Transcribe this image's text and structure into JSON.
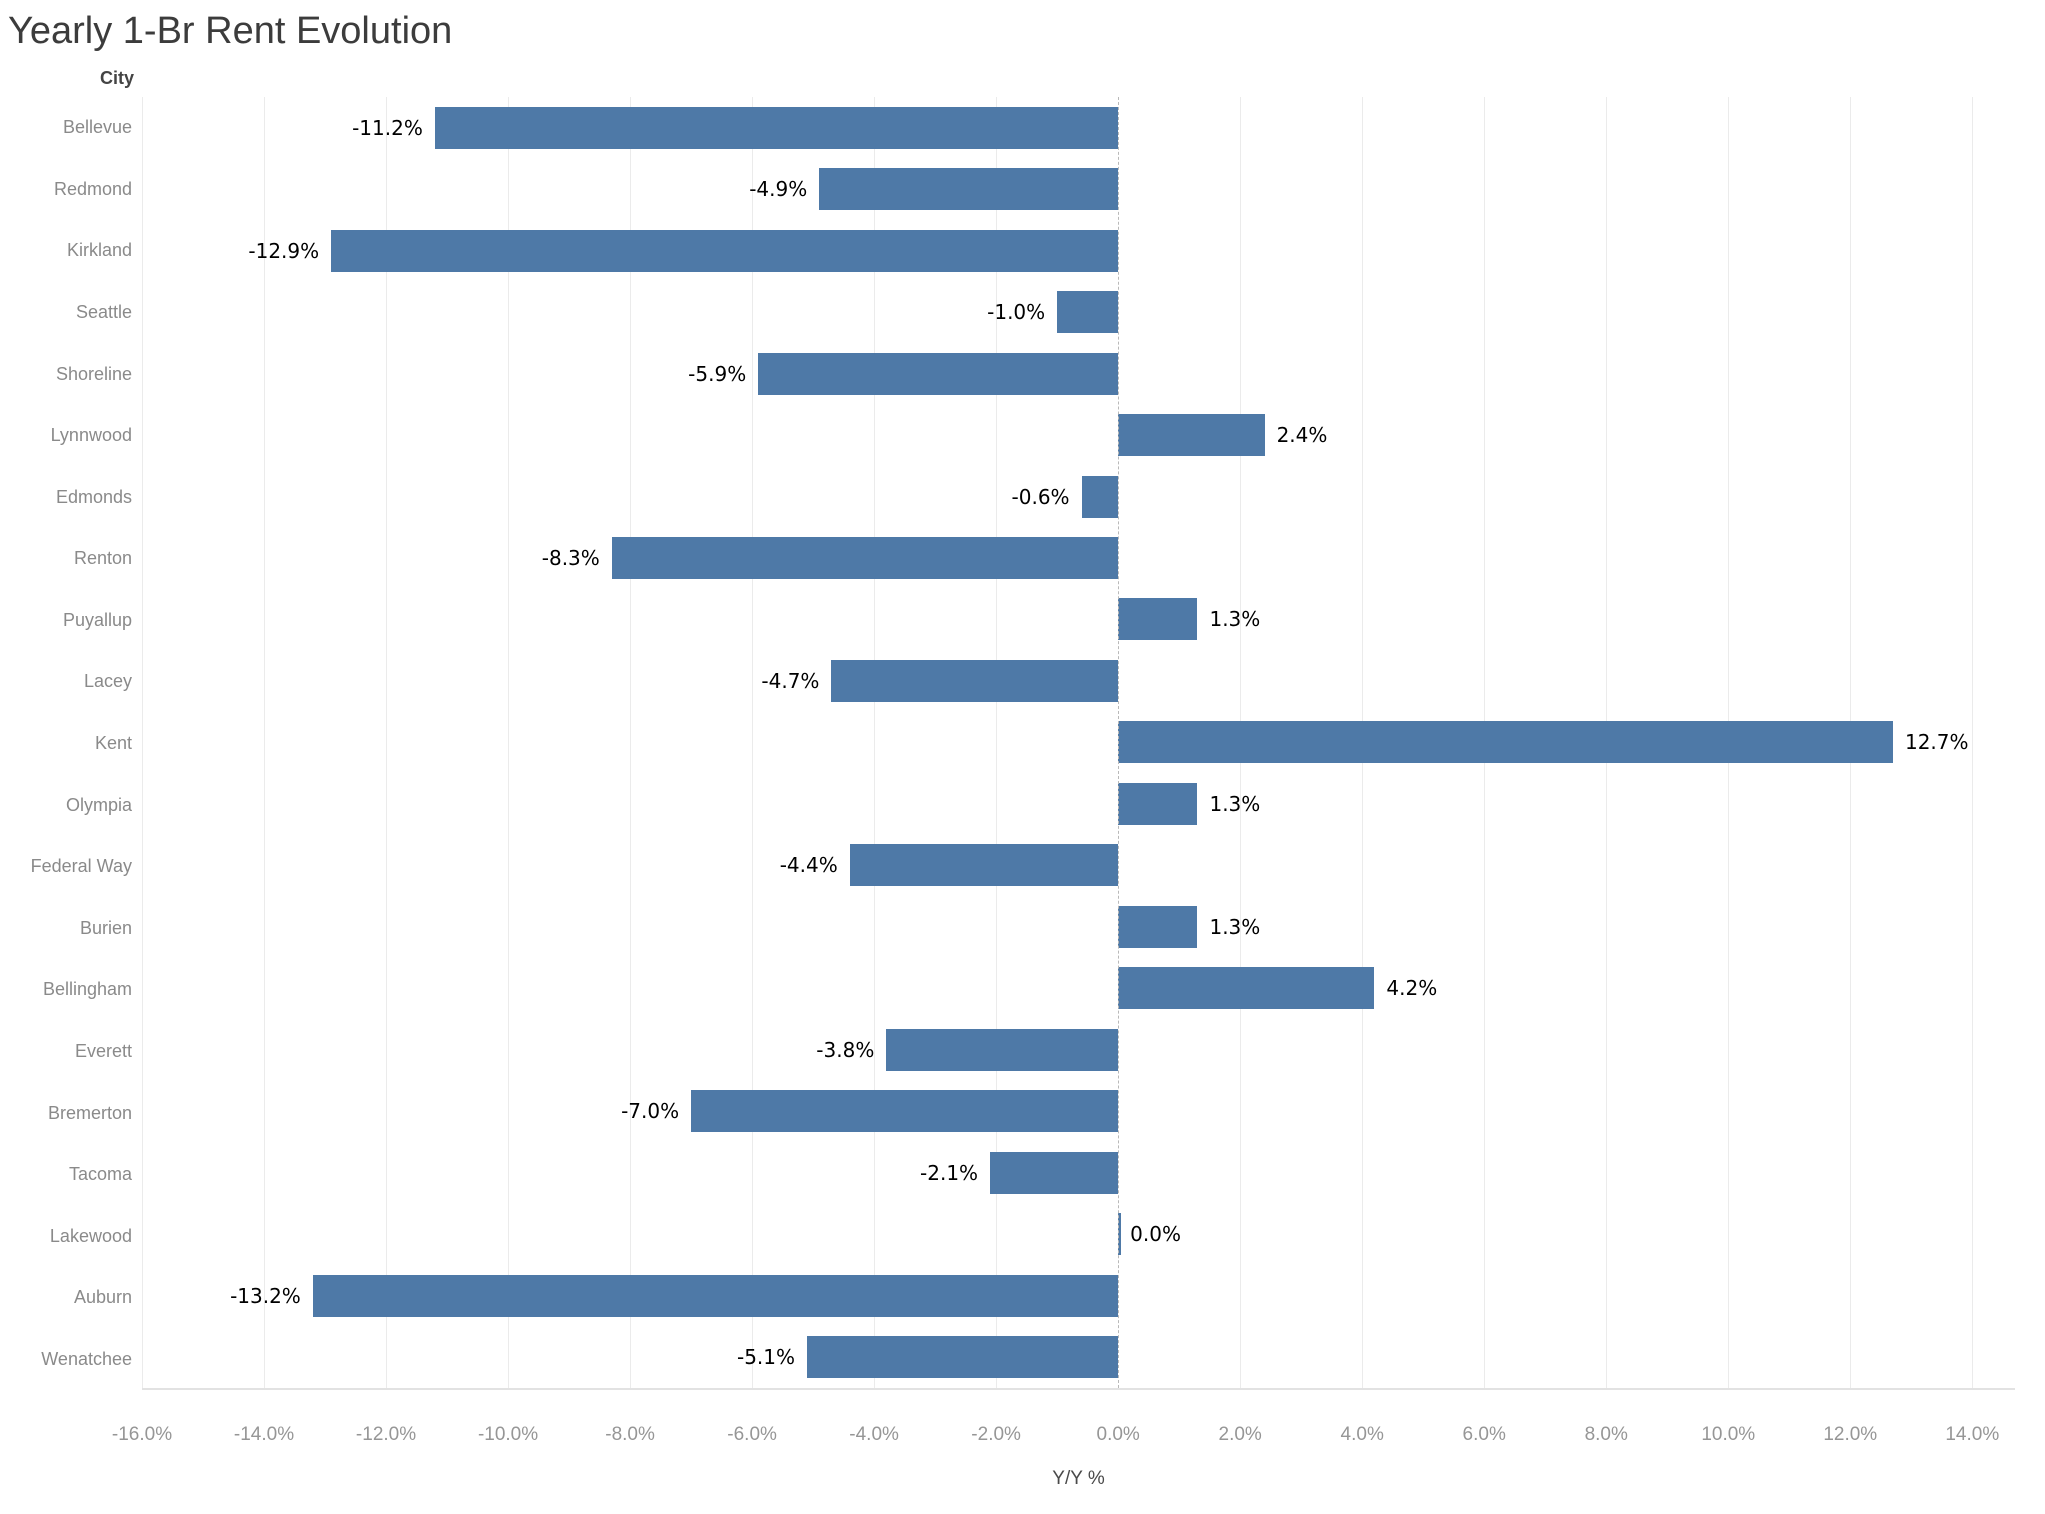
{
  "chart_data": {
    "type": "bar",
    "orientation": "horizontal",
    "title": "Yearly 1-Br Rent Evolution",
    "category_header": "City",
    "categories": [
      "Bellevue",
      "Redmond",
      "Kirkland",
      "Seattle",
      "Shoreline",
      "Lynnwood",
      "Edmonds",
      "Renton",
      "Puyallup",
      "Lacey",
      "Kent",
      "Olympia",
      "Federal Way",
      "Burien",
      "Bellingham",
      "Everett",
      "Bremerton",
      "Tacoma",
      "Lakewood",
      "Auburn",
      "Wenatchee"
    ],
    "values": [
      -11.2,
      -4.9,
      -12.9,
      -1.0,
      -5.9,
      2.4,
      -0.6,
      -8.3,
      1.3,
      -4.7,
      12.7,
      1.3,
      -4.4,
      1.3,
      4.2,
      -3.8,
      -7.0,
      -2.1,
      0.0,
      -13.2,
      -5.1
    ],
    "value_labels": [
      "-11.2%",
      "-4.9%",
      "-12.9%",
      "-1.0%",
      "-5.9%",
      "2.4%",
      "-0.6%",
      "-8.3%",
      "1.3%",
      "-4.7%",
      "12.7%",
      "1.3%",
      "-4.4%",
      "1.3%",
      "4.2%",
      "-3.8%",
      "-7.0%",
      "-2.1%",
      "0.0%",
      "-13.2%",
      "-5.1%"
    ],
    "xlabel": "Y/Y %",
    "xlim": [
      -16,
      14.7
    ],
    "xticks": [
      -16,
      -14,
      -12,
      -10,
      -8,
      -6,
      -4,
      -2,
      0,
      2,
      4,
      6,
      8,
      10,
      12,
      14
    ],
    "xtick_labels": [
      "-16.0%",
      "-14.0%",
      "-12.0%",
      "-10.0%",
      "-8.0%",
      "-6.0%",
      "-4.0%",
      "-2.0%",
      "0.0%",
      "2.0%",
      "4.0%",
      "6.0%",
      "8.0%",
      "10.0%",
      "12.0%",
      "14.0%"
    ],
    "bar_color": "#4e79a7",
    "grid": true,
    "zero_line_style": "dashed",
    "legend": "none"
  }
}
